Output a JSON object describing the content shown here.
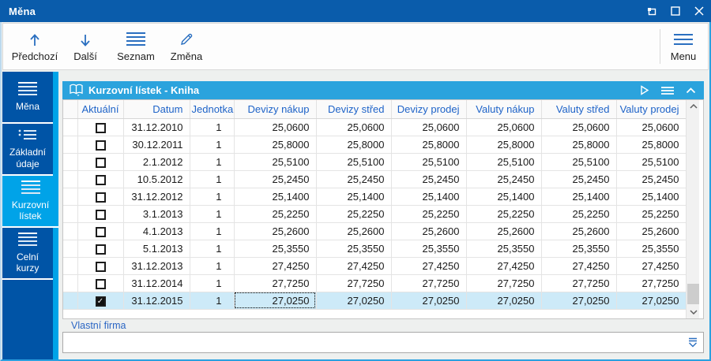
{
  "window": {
    "title": "Měna",
    "controls": {
      "restore": "restore",
      "maximize": "maximize",
      "close": "close"
    }
  },
  "toolbar": {
    "buttons": [
      {
        "label": "Předchozí",
        "icon": "arrow-up-icon"
      },
      {
        "label": "Další",
        "icon": "arrow-down-icon"
      },
      {
        "label": "Seznam",
        "icon": "list-icon"
      },
      {
        "label": "Změna",
        "icon": "pencil-icon"
      }
    ],
    "menu_label": "Menu"
  },
  "sidebar": {
    "items": [
      {
        "label": "Měna",
        "selected": false
      },
      {
        "label": "Základní údaje",
        "selected": false
      },
      {
        "label": "Kurzovní lístek",
        "selected": true
      },
      {
        "label": "Celní kurzy",
        "selected": false
      }
    ]
  },
  "panel": {
    "title": "Kurzovní lístek - Kniha"
  },
  "table": {
    "columns": [
      "Aktuální",
      "Datum",
      "Jednotka",
      "Devizy nákup",
      "Devizy střed",
      "Devizy prodej",
      "Valuty nákup",
      "Valuty střed",
      "Valuty prodej"
    ],
    "rows": [
      {
        "checked": false,
        "selected": false,
        "datum": "31.12.2010",
        "jednotka": "1",
        "rates": [
          "25,0600",
          "25,0600",
          "25,0600",
          "25,0600",
          "25,0600",
          "25,0600"
        ]
      },
      {
        "checked": false,
        "selected": false,
        "datum": "30.12.2011",
        "jednotka": "1",
        "rates": [
          "25,8000",
          "25,8000",
          "25,8000",
          "25,8000",
          "25,8000",
          "25,8000"
        ]
      },
      {
        "checked": false,
        "selected": false,
        "datum": "2.1.2012",
        "jednotka": "1",
        "rates": [
          "25,5100",
          "25,5100",
          "25,5100",
          "25,5100",
          "25,5100",
          "25,5100"
        ]
      },
      {
        "checked": false,
        "selected": false,
        "datum": "10.5.2012",
        "jednotka": "1",
        "rates": [
          "25,2450",
          "25,2450",
          "25,2450",
          "25,2450",
          "25,2450",
          "25,2450"
        ]
      },
      {
        "checked": false,
        "selected": false,
        "datum": "31.12.2012",
        "jednotka": "1",
        "rates": [
          "25,1400",
          "25,1400",
          "25,1400",
          "25,1400",
          "25,1400",
          "25,1400"
        ]
      },
      {
        "checked": false,
        "selected": false,
        "datum": "3.1.2013",
        "jednotka": "1",
        "rates": [
          "25,2250",
          "25,2250",
          "25,2250",
          "25,2250",
          "25,2250",
          "25,2250"
        ]
      },
      {
        "checked": false,
        "selected": false,
        "datum": "4.1.2013",
        "jednotka": "1",
        "rates": [
          "25,2600",
          "25,2600",
          "25,2600",
          "25,2600",
          "25,2600",
          "25,2600"
        ]
      },
      {
        "checked": false,
        "selected": false,
        "datum": "5.1.2013",
        "jednotka": "1",
        "rates": [
          "25,3550",
          "25,3550",
          "25,3550",
          "25,3550",
          "25,3550",
          "25,3550"
        ]
      },
      {
        "checked": false,
        "selected": false,
        "datum": "31.12.2013",
        "jednotka": "1",
        "rates": [
          "27,4250",
          "27,4250",
          "27,4250",
          "27,4250",
          "27,4250",
          "27,4250"
        ]
      },
      {
        "checked": false,
        "selected": false,
        "datum": "31.12.2014",
        "jednotka": "1",
        "rates": [
          "27,7250",
          "27,7250",
          "27,7250",
          "27,7250",
          "27,7250",
          "27,7250"
        ]
      },
      {
        "checked": true,
        "selected": true,
        "datum": "31.12.2015",
        "jednotka": "1",
        "rates": [
          "27,0250",
          "27,0250",
          "27,0250",
          "27,0250",
          "27,0250",
          "27,0250"
        ]
      }
    ],
    "focus": {
      "row_index": 10,
      "rate_index": 0
    }
  },
  "footer": {
    "label": "Vlastní firma",
    "value": "",
    "placeholder": ""
  },
  "colors": {
    "titlebar": "#0a5cab",
    "sidebar": "#0054a6",
    "accent_light_blue": "#00a3e8",
    "panel_header": "#2ba3dd",
    "selected_row": "#cdeaf8",
    "header_text": "#1e63c8",
    "toolbar_icon": "#2a6fc0"
  }
}
